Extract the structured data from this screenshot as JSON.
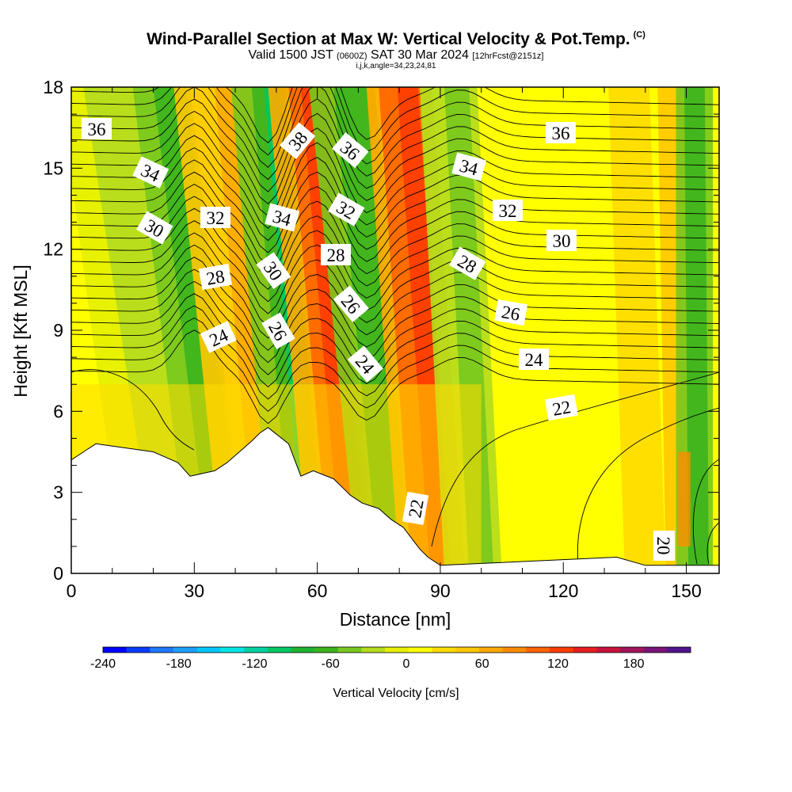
{
  "title": "Wind-Parallel Section at Max W: Vertical Velocity & Pot.Temp.",
  "copyright": "(C)",
  "subtitle": {
    "valid": "Valid 1500 JST",
    "utc": "(0600Z)",
    "date": "SAT 30 Mar 2024",
    "fcst": "[12hrFcst@2151z]"
  },
  "grid_info": "i,j,k,angle=34,23,24,81",
  "colors": {
    "ramp": [
      "#0000ff",
      "#0a3cff",
      "#1e78ff",
      "#1ea0ff",
      "#00c8ff",
      "#00e6e6",
      "#00d2a0",
      "#00c864",
      "#1eb432",
      "#3cb41e",
      "#78c81e",
      "#b4dc1e",
      "#e6f000",
      "#ffff00",
      "#ffdc00",
      "#ffc800",
      "#ffaa00",
      "#ff8c00",
      "#ff6400",
      "#ff3c00",
      "#e61e1e",
      "#c8143c",
      "#a0145a",
      "#781478",
      "#50148c"
    ]
  },
  "chart_data": {
    "type": "heatmap",
    "xlabel": "Distance [nm]",
    "ylabel": "Height [Kft MSL]",
    "xlim": [
      0,
      158
    ],
    "ylim": [
      0,
      18
    ],
    "x_ticks": [
      "0",
      "30",
      "60",
      "90",
      "120",
      "150"
    ],
    "y_ticks": [
      "0",
      "3",
      "6",
      "9",
      "12",
      "15",
      "18"
    ],
    "grid": false,
    "colorbar": {
      "label": "Vertical Velocity [cm/s]",
      "min": -240,
      "max": 225,
      "step": 20,
      "ticks": [
        "-240",
        "-180",
        "-120",
        "-60",
        "0",
        "60",
        "120",
        "180"
      ]
    },
    "terrain": [
      [
        0,
        4.2
      ],
      [
        3,
        4.5
      ],
      [
        6,
        4.8
      ],
      [
        20,
        4.5
      ],
      [
        23,
        4.3
      ],
      [
        26,
        4.1
      ],
      [
        29,
        3.6
      ],
      [
        35,
        3.8
      ],
      [
        38,
        4.1
      ],
      [
        41,
        4.5
      ],
      [
        44,
        4.9
      ],
      [
        46,
        5.2
      ],
      [
        48,
        5.4
      ],
      [
        53,
        4.8
      ],
      [
        56,
        3.6
      ],
      [
        59,
        3.8
      ],
      [
        64,
        3.5
      ],
      [
        66,
        3.2
      ],
      [
        68,
        2.9
      ],
      [
        71,
        2.6
      ],
      [
        75,
        2.4
      ],
      [
        78,
        2.0
      ],
      [
        81,
        1.7
      ],
      [
        83,
        1.3
      ],
      [
        85,
        0.9
      ],
      [
        87,
        0.6
      ],
      [
        90,
        0.3
      ],
      [
        133,
        0.6
      ],
      [
        140,
        0.3
      ],
      [
        158,
        0.3
      ]
    ],
    "contour_labels": [
      "36",
      "34",
      "30",
      "32",
      "28",
      "24",
      "38",
      "34",
      "30",
      "26",
      "36",
      "32",
      "28",
      "26",
      "24",
      "36",
      "34",
      "32",
      "30",
      "28",
      "26",
      "24",
      "22",
      "22",
      "20"
    ]
  }
}
